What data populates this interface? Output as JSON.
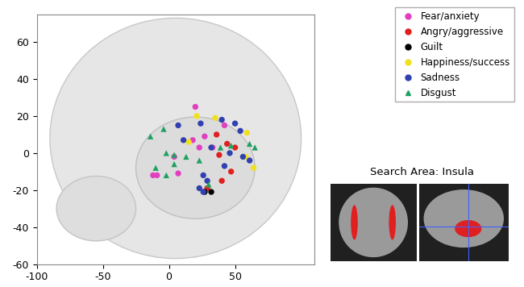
{
  "chart_data": {
    "type": "scatter",
    "xlim": [
      -100,
      110
    ],
    "xticks": [
      -100,
      -50,
      0,
      50
    ],
    "ylim": [
      -60,
      75
    ],
    "yticks": [
      -60,
      -40,
      -20,
      0,
      20,
      40,
      60
    ],
    "legend": "upper right",
    "annotation": "Search Area: Insula",
    "series": [
      {
        "name": "Fear/anxiety",
        "color": "#e040c0",
        "marker": "circle",
        "x": [
          20,
          42,
          18,
          23,
          33,
          27,
          4,
          7,
          -12,
          -9
        ],
        "y": [
          25,
          15,
          7,
          3,
          3,
          9,
          -2,
          -11,
          -12,
          -12
        ]
      },
      {
        "name": "Angry/aggressive",
        "color": "#e02020",
        "marker": "circle",
        "x": [
          36,
          44,
          50,
          47,
          40,
          29,
          38
        ],
        "y": [
          10,
          5,
          3,
          -10,
          -15,
          -19,
          -1
        ]
      },
      {
        "name": "Guilt",
        "color": "#000000",
        "marker": "circle",
        "x": [
          32,
          27
        ],
        "y": [
          -21,
          -21
        ]
      },
      {
        "name": "Happiness/success",
        "color": "#f0e020",
        "marker": "circle",
        "x": [
          21,
          35,
          59,
          15,
          64,
          58
        ],
        "y": [
          20,
          19,
          11,
          6,
          -8,
          -2
        ]
      },
      {
        "name": "Sadness",
        "color": "#3040b0",
        "marker": "circle",
        "x": [
          7,
          24,
          40,
          50,
          54,
          11,
          32,
          46,
          56,
          61,
          42,
          26,
          23,
          26,
          29
        ],
        "y": [
          15,
          16,
          18,
          16,
          12,
          7,
          3,
          0,
          -2,
          -4,
          -7,
          -12,
          -19,
          -21,
          -15
        ]
      },
      {
        "name": "Disgust",
        "color": "#20a060",
        "marker": "triangle",
        "x": [
          -4,
          -14,
          -2,
          4,
          13,
          23,
          39,
          47,
          65,
          61,
          4,
          -10,
          30,
          -2
        ],
        "y": [
          13,
          9,
          0,
          -1,
          -2,
          -4,
          3,
          4,
          3,
          5,
          -6,
          -8,
          -17,
          -12
        ]
      }
    ]
  }
}
